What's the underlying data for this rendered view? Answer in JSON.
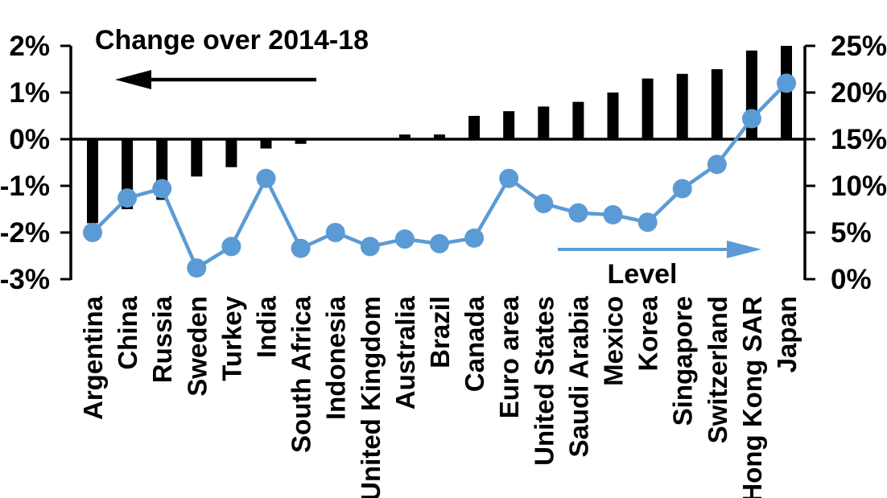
{
  "chart_data": {
    "type": "bar+line",
    "title": "Change over 2014-18",
    "categories": [
      "Argentina",
      "China",
      "Russia",
      "Sweden",
      "Turkey",
      "India",
      "South Africa",
      "Indonesia",
      "United Kingdom",
      "Australia",
      "Brazil",
      "Canada",
      "Euro area",
      "United States",
      "Saudi Arabia",
      "Mexico",
      "Korea",
      "Singapore",
      "Switzerland",
      "Hong Kong SAR",
      "Japan"
    ],
    "series": [
      {
        "name": "Change over 2014-18",
        "type": "bar",
        "axis": "left",
        "unit": "%",
        "values": [
          -1.8,
          -1.5,
          -1.3,
          -0.8,
          -0.6,
          -0.2,
          -0.1,
          0,
          0,
          0.1,
          0.1,
          0.5,
          0.6,
          0.7,
          0.8,
          1.0,
          1.3,
          1.4,
          1.5,
          1.9,
          2.0
        ]
      },
      {
        "name": "Level",
        "type": "line",
        "axis": "right",
        "unit": "%",
        "values": [
          5.0,
          8.7,
          9.7,
          1.2,
          3.5,
          10.8,
          3.3,
          5.0,
          3.5,
          4.3,
          3.8,
          4.4,
          10.8,
          8.1,
          7.1,
          6.9,
          6.1,
          9.7,
          12.3,
          17.2,
          21.0
        ]
      }
    ],
    "left_axis": {
      "tick_labels": [
        "2%",
        "1%",
        "0%",
        "-1%",
        "-2%",
        "-3%"
      ],
      "tick_values": [
        2,
        1,
        0,
        -1,
        -2,
        -3
      ],
      "min": -3,
      "max": 2
    },
    "right_axis": {
      "tick_labels": [
        "25%",
        "20%",
        "15%",
        "10%",
        "5%",
        "0%"
      ],
      "tick_values": [
        25,
        20,
        15,
        10,
        5,
        0
      ],
      "min": 0,
      "max": 25
    },
    "annotations": {
      "change_label": "Change over 2014-18",
      "level_label": "Level"
    },
    "legend": "none",
    "grid": false
  },
  "colors": {
    "bar": "#000000",
    "line": "#5B9BD5",
    "axis": "#000000",
    "text": "#000000",
    "background": "#FFFFFF"
  }
}
